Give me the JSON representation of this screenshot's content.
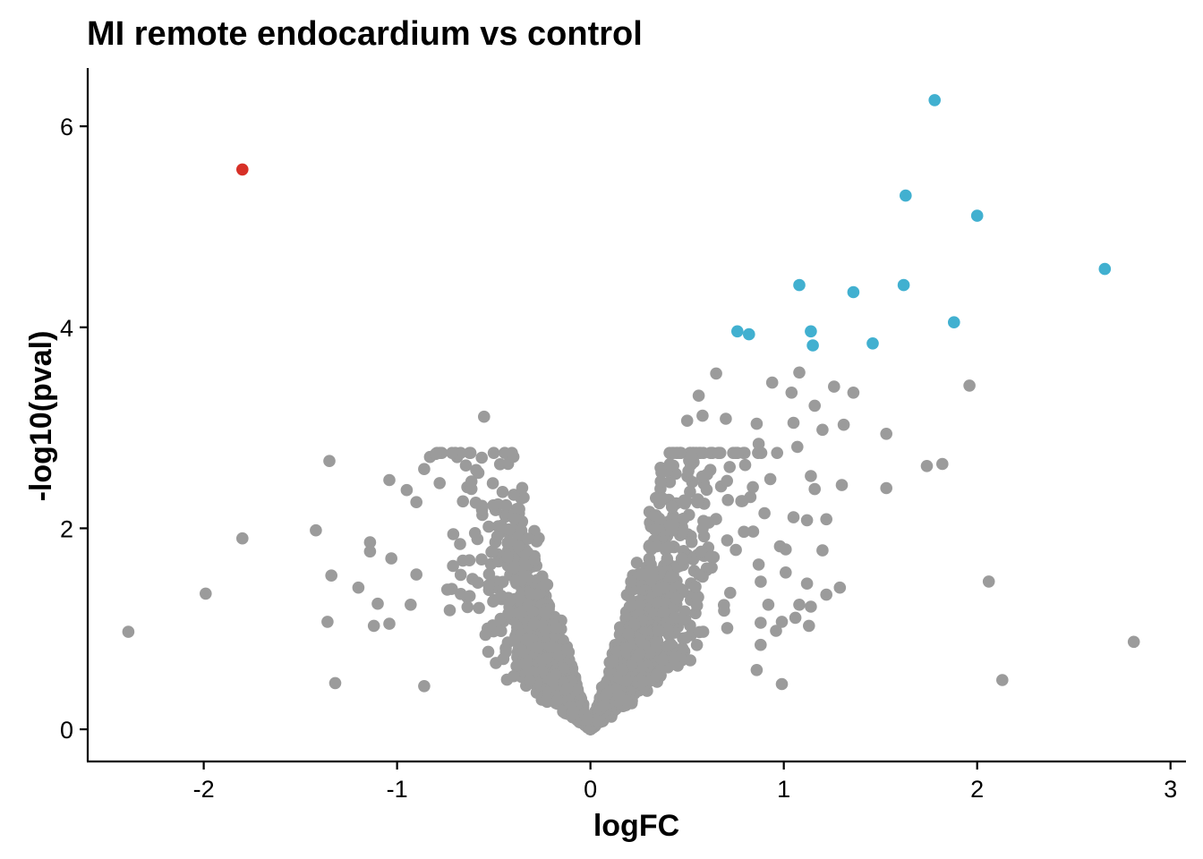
{
  "chart_data": {
    "type": "scatter",
    "title": "MI remote endocardium vs control",
    "xlabel": "logFC",
    "ylabel": "-log10(pval)",
    "xlim": [
      -2.6,
      3.08
    ],
    "ylim": [
      -0.32,
      6.58
    ],
    "xticks": [
      -2,
      -1,
      0,
      1,
      2,
      3
    ],
    "xtick_labels": [
      "-2",
      "-1",
      "0",
      "1",
      "2",
      "3"
    ],
    "yticks": [
      0,
      2,
      4,
      6
    ],
    "ytick_labels": [
      "0",
      "2",
      "4",
      "6"
    ],
    "grid": false,
    "legend": "none",
    "colors": {
      "down": "#d73027",
      "up": "#41b0d0",
      "ns": "#9b9b9b"
    },
    "highlighted_points": {
      "down": [
        [
          -1.8,
          5.57
        ]
      ],
      "up": [
        [
          1.78,
          6.26
        ],
        [
          1.63,
          5.31
        ],
        [
          2.0,
          5.11
        ],
        [
          2.66,
          4.58
        ],
        [
          1.08,
          4.42
        ],
        [
          1.36,
          4.35
        ],
        [
          1.62,
          4.42
        ],
        [
          1.88,
          4.05
        ],
        [
          0.76,
          3.96
        ],
        [
          0.82,
          3.93
        ],
        [
          1.14,
          3.96
        ],
        [
          1.15,
          3.82
        ],
        [
          1.46,
          3.84
        ]
      ]
    },
    "outlier_points": [
      [
        -2.39,
        0.97
      ],
      [
        -1.99,
        1.35
      ],
      [
        -1.8,
        1.9
      ],
      [
        -1.42,
        1.98
      ],
      [
        -1.35,
        2.67
      ],
      [
        -1.34,
        1.53
      ],
      [
        -1.36,
        1.07
      ],
      [
        -1.32,
        0.46
      ],
      [
        -1.2,
        1.41
      ],
      [
        -1.14,
        1.86
      ],
      [
        -1.14,
        1.77
      ],
      [
        -1.1,
        1.25
      ],
      [
        -1.12,
        1.03
      ],
      [
        -1.04,
        2.48
      ],
      [
        -1.03,
        1.7
      ],
      [
        -1.04,
        1.05
      ],
      [
        -0.95,
        2.38
      ],
      [
        -0.93,
        1.24
      ],
      [
        -0.9,
        2.26
      ],
      [
        -0.9,
        1.54
      ],
      [
        -0.86,
        2.59
      ],
      [
        -0.86,
        0.43
      ],
      [
        -0.83,
        2.71
      ],
      [
        -0.8,
        2.74
      ],
      [
        -0.78,
        2.45
      ],
      [
        -0.55,
        3.11
      ],
      [
        0.56,
        3.32
      ],
      [
        0.65,
        3.54
      ],
      [
        0.5,
        3.07
      ],
      [
        0.58,
        3.12
      ],
      [
        0.7,
        3.09
      ],
      [
        0.86,
        3.04
      ],
      [
        0.94,
        3.45
      ],
      [
        1.04,
        3.35
      ],
      [
        1.08,
        3.55
      ],
      [
        1.05,
        3.05
      ],
      [
        1.16,
        3.22
      ],
      [
        1.2,
        2.98
      ],
      [
        1.26,
        3.41
      ],
      [
        1.31,
        3.03
      ],
      [
        1.36,
        3.35
      ],
      [
        1.53,
        2.94
      ],
      [
        1.07,
        2.81
      ],
      [
        1.14,
        2.52
      ],
      [
        1.16,
        2.39
      ],
      [
        1.3,
        2.43
      ],
      [
        1.53,
        2.4
      ],
      [
        1.74,
        2.62
      ],
      [
        1.82,
        2.64
      ],
      [
        1.96,
        3.42
      ],
      [
        1.05,
        2.11
      ],
      [
        1.12,
        2.08
      ],
      [
        1.22,
        2.09
      ],
      [
        1.2,
        1.78
      ],
      [
        0.98,
        1.82
      ],
      [
        1.01,
        1.79
      ],
      [
        1.01,
        1.56
      ],
      [
        1.12,
        1.45
      ],
      [
        1.29,
        1.41
      ],
      [
        1.22,
        1.34
      ],
      [
        0.92,
        1.24
      ],
      [
        1.08,
        1.24
      ],
      [
        1.14,
        1.22
      ],
      [
        1.06,
        1.11
      ],
      [
        0.99,
        1.07
      ],
      [
        0.96,
        0.98
      ],
      [
        1.13,
        1.03
      ],
      [
        0.88,
        1.06
      ],
      [
        0.88,
        0.84
      ],
      [
        0.86,
        0.59
      ],
      [
        0.99,
        0.45
      ],
      [
        2.06,
        1.47
      ],
      [
        2.13,
        0.49
      ],
      [
        2.81,
        0.87
      ],
      [
        0.87,
        1.64
      ],
      [
        0.87,
        2.84
      ],
      [
        0.9,
        2.15
      ],
      [
        0.93,
        2.49
      ],
      [
        0.78,
        2.27
      ],
      [
        0.84,
        2.41
      ],
      [
        0.8,
        2.63
      ],
      [
        0.72,
        2.61
      ]
    ],
    "bulk_cloud": {
      "count": 2200,
      "description": "dense cloud of non-significant genes forming a V shape centered at logFC 0"
    }
  }
}
